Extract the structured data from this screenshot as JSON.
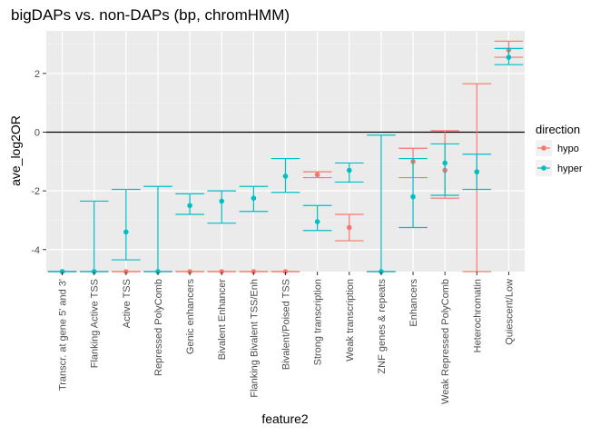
{
  "chart_data": {
    "type": "errorbar",
    "title": "bigDAPs vs. non-DAPs (bp, chromHMM)",
    "xlabel": "feature2",
    "ylabel": "ave_log2OR",
    "ylim": [
      -4.75,
      3.45
    ],
    "yticks": [
      2,
      0,
      -2,
      -4
    ],
    "hline": 0,
    "grid": true,
    "legend": {
      "title": "direction",
      "position": "right"
    },
    "categories": [
      "Transcr. at gene 5' and 3'",
      "Flanking Active TSS",
      "Active TSS",
      "Repressed PolyComb",
      "Genic enhancers",
      "Bivalent Enhancer",
      "Flanking Bivalent TSS/Enh",
      "Bivalent/Poised TSS",
      "Strong transcription",
      "Weak transcription",
      "ZNF genes & repeats",
      "Enhancers",
      "Weak Repressed PolyComb",
      "Heterochromatin",
      "Quiescent/Low"
    ],
    "series": [
      {
        "name": "hypo",
        "color": "#F8766D",
        "points": [
          {
            "y": -4.75,
            "lo": -4.75,
            "hi": -4.75
          },
          {
            "y": -4.75,
            "lo": -4.75,
            "hi": -4.75
          },
          {
            "y": -4.75,
            "lo": -4.75,
            "hi": -4.75
          },
          {
            "y": -4.75,
            "lo": -4.75,
            "hi": -4.75
          },
          {
            "y": -4.75,
            "lo": -4.75,
            "hi": -4.75
          },
          {
            "y": -4.75,
            "lo": -4.75,
            "hi": -4.75
          },
          {
            "y": -4.75,
            "lo": -4.75,
            "hi": -4.75
          },
          {
            "y": -4.75,
            "lo": -4.75,
            "hi": -4.75
          },
          {
            "y": -1.45,
            "lo": -1.55,
            "hi": -1.35
          },
          {
            "y": -3.25,
            "lo": -3.7,
            "hi": -2.8
          },
          {
            "y": -4.75,
            "lo": -4.75,
            "hi": -4.75
          },
          {
            "y": -1.0,
            "lo": -1.55,
            "hi": -0.55
          },
          {
            "y": -1.3,
            "lo": -2.25,
            "hi": 0.05
          },
          {
            "y": -1.35,
            "lo": -4.75,
            "hi": 1.65
          },
          {
            "y": 2.8,
            "lo": 2.55,
            "hi": 3.1
          }
        ]
      },
      {
        "name": "hyper",
        "color": "#00BFC4",
        "points": [
          {
            "y": -4.75,
            "lo": -4.75,
            "hi": -4.75
          },
          {
            "y": -4.75,
            "lo": -4.75,
            "hi": -2.35
          },
          {
            "y": -3.4,
            "lo": -4.35,
            "hi": -1.95
          },
          {
            "y": -4.75,
            "lo": -4.75,
            "hi": -1.85
          },
          {
            "y": -2.5,
            "lo": -2.8,
            "hi": -2.1
          },
          {
            "y": -2.35,
            "lo": -3.1,
            "hi": -2.0
          },
          {
            "y": -2.25,
            "lo": -2.7,
            "hi": -1.85
          },
          {
            "y": -1.5,
            "lo": -2.05,
            "hi": -0.9
          },
          {
            "y": -3.05,
            "lo": -3.35,
            "hi": -2.5
          },
          {
            "y": -1.3,
            "lo": -1.7,
            "hi": -1.05
          },
          {
            "y": -4.75,
            "lo": -4.75,
            "hi": -0.1
          },
          {
            "y": -2.2,
            "lo": -3.25,
            "hi": -0.9
          },
          {
            "y": -1.05,
            "lo": -2.15,
            "hi": -0.4
          },
          {
            "y": -1.35,
            "lo": -1.95,
            "hi": -0.75
          },
          {
            "y": 2.55,
            "lo": 2.3,
            "hi": 2.85
          }
        ]
      }
    ]
  }
}
